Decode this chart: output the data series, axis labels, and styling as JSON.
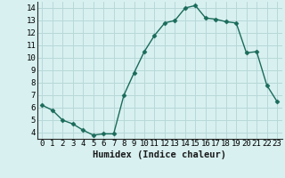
{
  "x": [
    0,
    1,
    2,
    3,
    4,
    5,
    6,
    7,
    8,
    9,
    10,
    11,
    12,
    13,
    14,
    15,
    16,
    17,
    18,
    19,
    20,
    21,
    22,
    23
  ],
  "y": [
    6.2,
    5.8,
    5.0,
    4.7,
    4.2,
    3.8,
    3.9,
    3.9,
    7.0,
    8.8,
    10.5,
    11.8,
    12.8,
    13.0,
    14.0,
    14.2,
    13.2,
    13.1,
    12.9,
    12.8,
    10.4,
    10.5,
    7.8,
    6.5
  ],
  "line_color": "#1a6b5a",
  "marker": "D",
  "marker_size": 2.5,
  "bg_color": "#d8f0f0",
  "grid_color": "#b8d8d8",
  "xlabel": "Humidex (Indice chaleur)",
  "xlim": [
    -0.5,
    23.5
  ],
  "ylim": [
    3.5,
    14.5
  ],
  "xticks": [
    0,
    1,
    2,
    3,
    4,
    5,
    6,
    7,
    8,
    9,
    10,
    11,
    12,
    13,
    14,
    15,
    16,
    17,
    18,
    19,
    20,
    21,
    22,
    23
  ],
  "yticks": [
    4,
    5,
    6,
    7,
    8,
    9,
    10,
    11,
    12,
    13,
    14
  ],
  "tick_fontsize": 6.5,
  "xlabel_fontsize": 7.5
}
